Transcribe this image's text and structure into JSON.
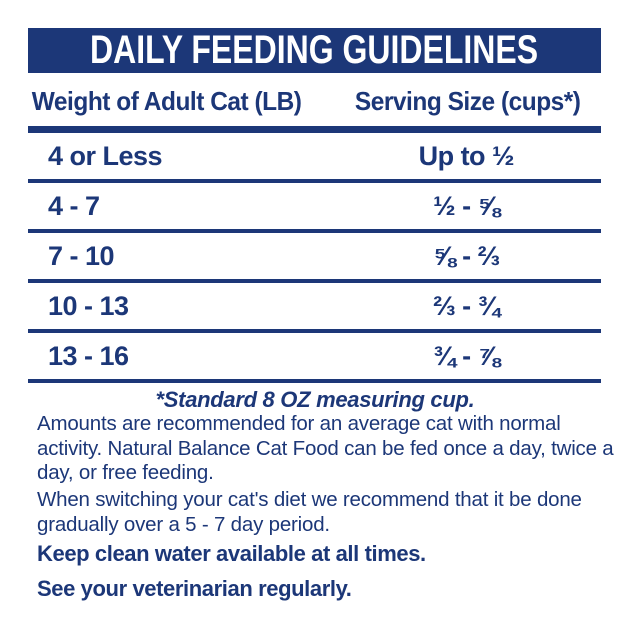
{
  "header": {
    "title": "DAILY FEEDING GUIDELINES"
  },
  "table": {
    "columns": [
      {
        "label": "Weight of Adult Cat (LB)"
      },
      {
        "label": "Serving Size (cups*)"
      }
    ],
    "rows": [
      {
        "weight": "4 or Less",
        "serving": "Up to ½"
      },
      {
        "weight": "4 - 7",
        "serving": "½ - ⅝"
      },
      {
        "weight": "7 - 10",
        "serving": "⅝ - ⅔"
      },
      {
        "weight": "10 - 13",
        "serving": "⅔ - ¾"
      },
      {
        "weight": "13 - 16",
        "serving": "¾ - ⅞"
      }
    ],
    "footnote": "*Standard 8 OZ measuring cup."
  },
  "notes": {
    "paragraphs": [
      "Amounts are recommended for an average cat with normal activity. Natural Balance Cat Food can be fed once a day, twice a day, or free feeding.",
      "When switching your cat's diet we recommend that it be done gradually over a 5 - 7 day period."
    ],
    "statements": [
      "Keep clean water available at all times.",
      "See your veterinarian regularly."
    ]
  },
  "colors": {
    "navy": "#1c3778",
    "background": "#ffffff"
  }
}
